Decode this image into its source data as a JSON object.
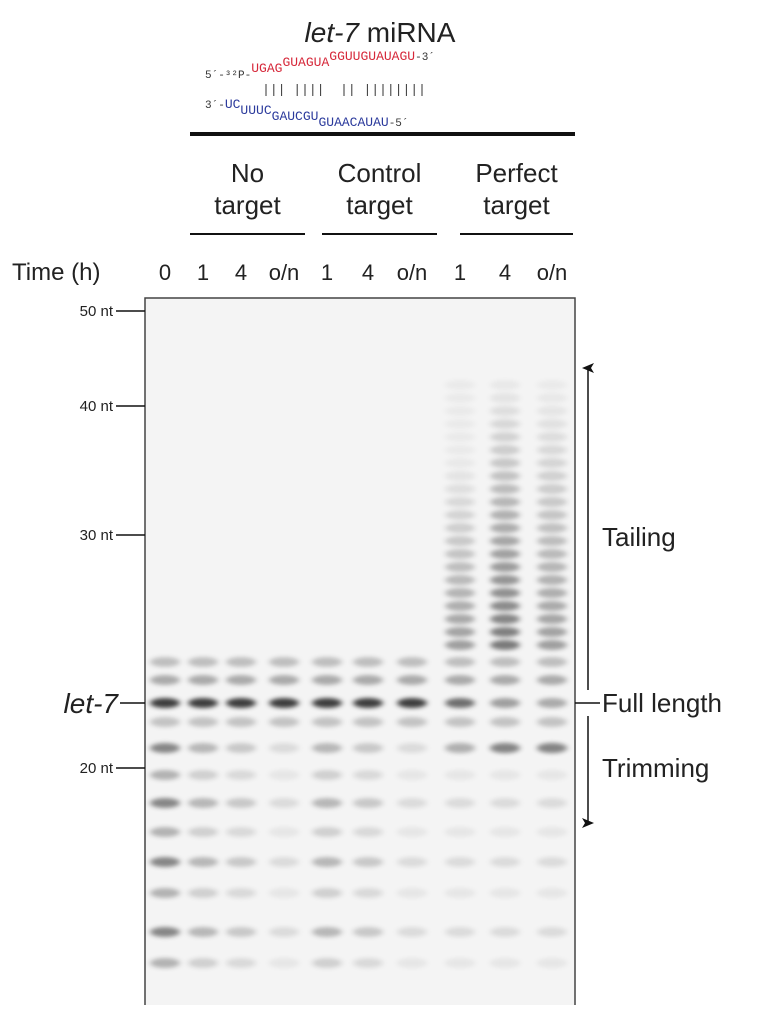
{
  "title": {
    "gene": "let-7",
    "suffix": "miRNA"
  },
  "duplex": {
    "top": {
      "prefix": "5´-³²P-",
      "segments": [
        "U",
        "GAG",
        "G",
        "UAGUA",
        "G",
        "GUUGUAUAGU"
      ],
      "suffix": "-3´"
    },
    "bottom": {
      "prefix": "3´-",
      "segments": [
        "UC",
        "U",
        "UUC",
        "G",
        "AUCGU",
        "G",
        "UAACAUAU"
      ],
      "suffix": "-5´"
    }
  },
  "groups": [
    [
      "No",
      "target"
    ],
    [
      "Control",
      "target"
    ],
    [
      "Perfect",
      "target"
    ]
  ],
  "time_label": "Time (h)",
  "lanes": [
    "0",
    "1",
    "4",
    "o/n",
    "1",
    "4",
    "o/n",
    "1",
    "4",
    "o/n"
  ],
  "markers": [
    "50 nt",
    "40 nt",
    "30 nt",
    "let-7",
    "20 nt"
  ],
  "annotations": [
    "Tailing",
    "Full length",
    "Trimming"
  ]
}
